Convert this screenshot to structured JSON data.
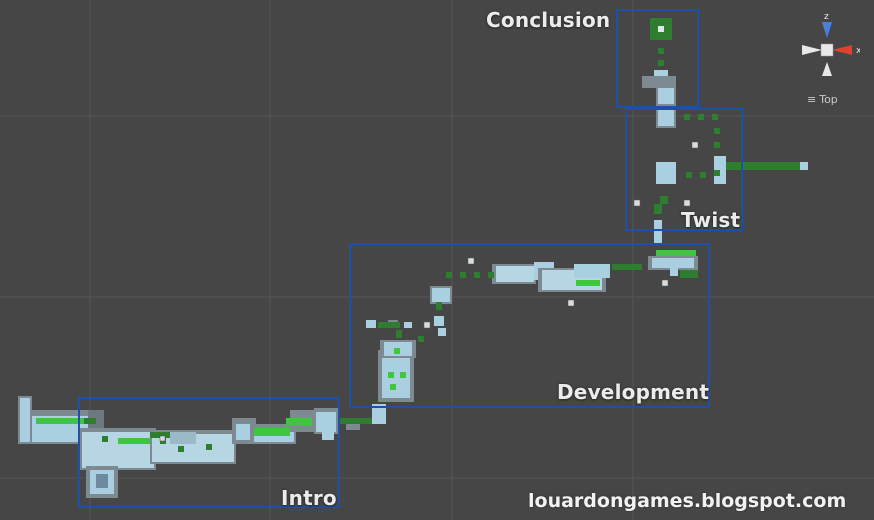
{
  "labels": {
    "conclusion": "Conclusion",
    "twist": "Twist",
    "development": "Development",
    "intro": "Intro"
  },
  "watermark": "louardongames.blogspot.com",
  "gizmo": {
    "axis_z": "z",
    "axis_x": "x",
    "view_label": "Top",
    "view_menu_icon": "hamburger-icon"
  },
  "colors": {
    "background": "#464646",
    "grid": "#555555",
    "section_box": "#1f4fa8",
    "room_floor": "#a9cfe0",
    "room_wall": "#7e8a92",
    "path_dark": "#2f7d2f",
    "path_bright": "#3fc63f",
    "axis_z": "#4a7fe0",
    "axis_x": "#e0402c"
  }
}
